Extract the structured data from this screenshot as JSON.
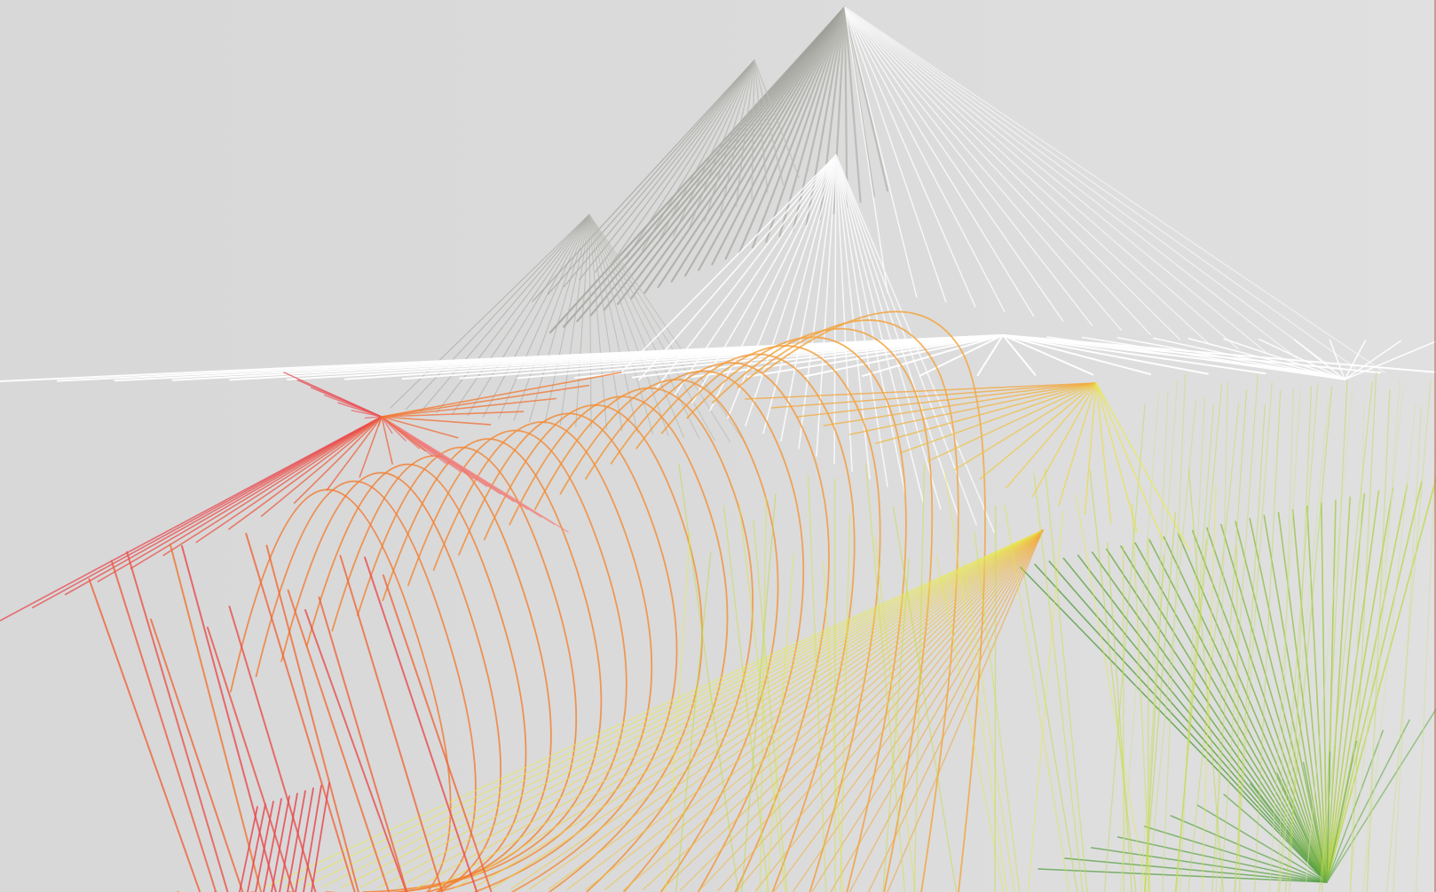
{
  "artwork": {
    "kind": "abstract generative line art",
    "palette": {
      "background": "#d9d9d9",
      "grey": "#a8a8a2",
      "white": "#ffffff",
      "red": "#e8474f",
      "orange": "#f2782e",
      "amber": "#f3a43a",
      "yellow": "#e8ea55",
      "lime": "#bcd93e",
      "green": "#4c9a3a"
    }
  }
}
